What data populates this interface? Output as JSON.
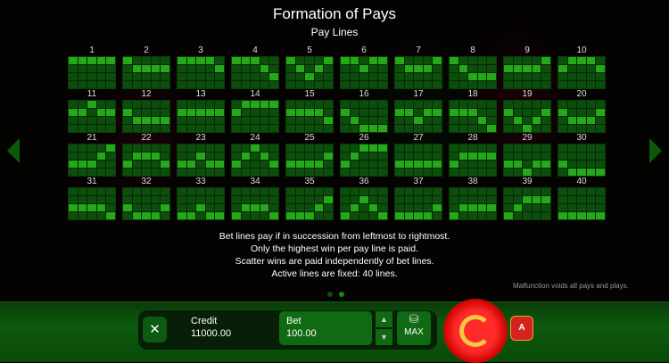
{
  "title": "Formation of Pays",
  "subtitle": "Pay Lines",
  "paylines": [
    [
      0,
      0,
      0,
      0,
      0
    ],
    [
      0,
      1,
      1,
      1,
      1
    ],
    [
      0,
      0,
      0,
      0,
      1
    ],
    [
      0,
      0,
      0,
      1,
      2
    ],
    [
      0,
      1,
      2,
      1,
      0
    ],
    [
      0,
      0,
      1,
      0,
      0
    ],
    [
      0,
      1,
      1,
      1,
      0
    ],
    [
      0,
      1,
      2,
      2,
      2
    ],
    [
      1,
      1,
      1,
      1,
      0
    ],
    [
      1,
      0,
      0,
      0,
      1
    ],
    [
      1,
      1,
      0,
      1,
      1
    ],
    [
      1,
      2,
      2,
      2,
      2
    ],
    [
      1,
      1,
      1,
      1,
      1
    ],
    [
      1,
      0,
      0,
      0,
      0
    ],
    [
      1,
      1,
      1,
      1,
      2
    ],
    [
      1,
      2,
      3,
      3,
      3
    ],
    [
      1,
      1,
      2,
      1,
      1
    ],
    [
      1,
      1,
      1,
      2,
      3
    ],
    [
      1,
      2,
      3,
      2,
      1
    ],
    [
      1,
      2,
      2,
      2,
      1
    ],
    [
      2,
      2,
      2,
      1,
      0
    ],
    [
      2,
      1,
      1,
      1,
      2
    ],
    [
      2,
      2,
      1,
      2,
      2
    ],
    [
      2,
      1,
      0,
      1,
      2
    ],
    [
      2,
      2,
      2,
      2,
      1
    ],
    [
      2,
      1,
      0,
      0,
      0
    ],
    [
      2,
      2,
      2,
      2,
      2
    ],
    [
      2,
      1,
      1,
      1,
      1
    ],
    [
      2,
      2,
      3,
      2,
      2
    ],
    [
      2,
      3,
      3,
      3,
      3
    ],
    [
      2,
      2,
      2,
      2,
      3
    ],
    [
      2,
      3,
      3,
      3,
      2
    ],
    [
      3,
      3,
      2,
      3,
      3
    ],
    [
      3,
      2,
      2,
      2,
      3
    ],
    [
      3,
      3,
      3,
      2,
      1
    ],
    [
      3,
      2,
      1,
      2,
      3
    ],
    [
      3,
      3,
      3,
      3,
      2
    ],
    [
      3,
      2,
      2,
      2,
      2
    ],
    [
      3,
      2,
      1,
      1,
      1
    ],
    [
      3,
      3,
      3,
      3,
      3
    ]
  ],
  "rules": [
    "Bet lines pay if in succession from leftmost to rightmost.",
    "Only the highest win per pay line is paid.",
    "Scatter wins are paid independently of bet lines.",
    "Active lines are fixed: 40 lines."
  ],
  "disclaimer": "Malfunction voids all pays and plays.",
  "page": {
    "current": 2,
    "total": 2
  },
  "controls": {
    "close": "✕",
    "credit_label": "Credit",
    "credit_value": "11000.00",
    "bet_label": "Bet",
    "bet_value": "100.00",
    "up": "▲",
    "down": "▼",
    "max_label": "MAX",
    "max_icon": "coins-icon",
    "autoplay": "A"
  },
  "colors": {
    "cell_off": "#0c4e0c",
    "cell_on": "#25a81a",
    "spin": "#ff2a2a"
  }
}
